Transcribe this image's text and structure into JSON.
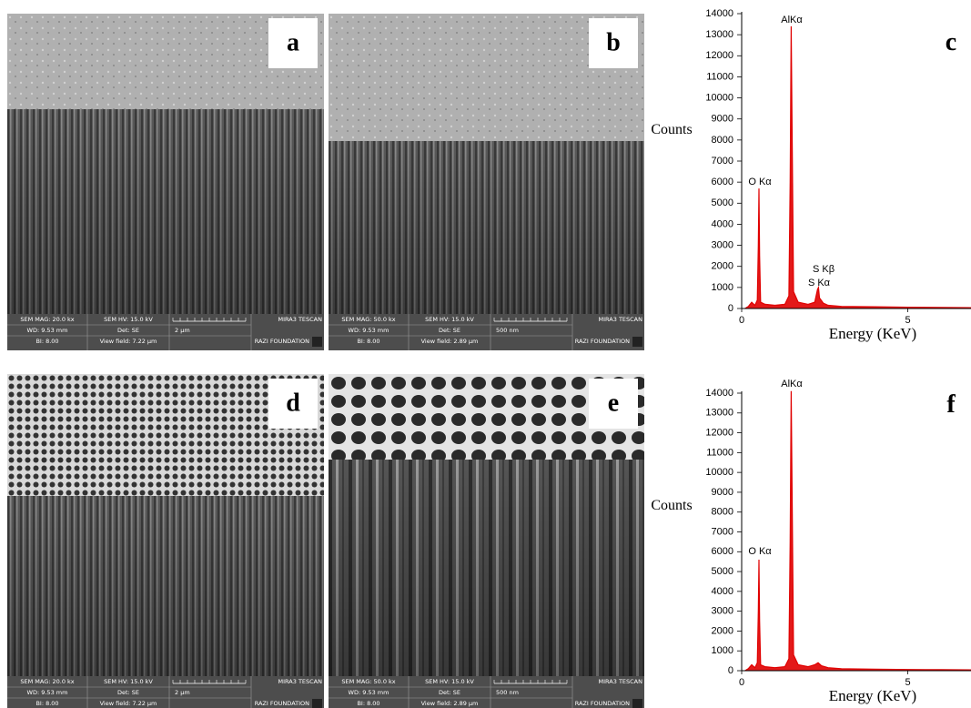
{
  "panels": [
    {
      "label": "a",
      "info": {
        "mag": "SEM MAG: 20.0 kx",
        "hv": "SEM HV: 15.0 kV",
        "brand": "MIRA3 TESCAN",
        "wd": "WD: 9.53 mm",
        "det": "Det: SE",
        "scale": "2 μm",
        "bi": "BI: 8.00",
        "view_field": "View field: 7.22 μm",
        "lab": "RAZI FOUNDATION"
      }
    },
    {
      "label": "b",
      "info": {
        "mag": "SEM MAG: 50.0 kx",
        "hv": "SEM HV: 15.0 kV",
        "brand": "MIRA3 TESCAN",
        "wd": "WD: 9.53 mm",
        "det": "Det: SE",
        "scale": "500 nm",
        "bi": "BI: 8.00",
        "view_field": "View field: 2.89 μm",
        "lab": "RAZI FOUNDATION"
      }
    },
    {
      "label": "d",
      "info": {
        "mag": "SEM MAG: 20.0 kx",
        "hv": "SEM HV: 15.0 kV",
        "brand": "MIRA3 TESCAN",
        "wd": "WD: 9.53 mm",
        "det": "Det: SE",
        "scale": "2 μm",
        "bi": "BI: 8.00",
        "view_field": "View field: 7.22 μm",
        "lab": "RAZI FOUNDATION"
      }
    },
    {
      "label": "e",
      "info": {
        "mag": "SEM MAG: 50.0 kx",
        "hv": "SEM HV: 15.0 kV",
        "brand": "MIRA3 TESCAN",
        "wd": "WD: 9.53 mm",
        "det": "Det: SE",
        "scale": "500 nm",
        "bi": "BI: 8.00",
        "view_field": "View field: 2.89 μm",
        "lab": "RAZI FOUNDATION"
      }
    }
  ],
  "chart_data": [
    {
      "type": "area",
      "label": "c",
      "xlabel": "Energy (KeV)",
      "ylabel": "Counts",
      "color": "#e00000",
      "x": [
        0.1,
        0.2,
        0.3,
        0.4,
        0.47,
        0.5,
        0.52,
        0.54,
        0.57,
        0.7,
        1.0,
        1.3,
        1.42,
        1.46,
        1.49,
        1.52,
        1.56,
        1.7,
        2.0,
        2.2,
        2.28,
        2.31,
        2.34,
        2.46,
        2.6,
        3,
        4,
        5,
        6,
        6.9
      ],
      "values": [
        0,
        100,
        300,
        150,
        400,
        3000,
        5700,
        2500,
        300,
        200,
        150,
        200,
        600,
        6000,
        13400,
        8000,
        800,
        300,
        200,
        300,
        900,
        1000,
        500,
        250,
        150,
        100,
        80,
        60,
        50,
        40
      ],
      "annotations": [
        "AlKα",
        "O Kα",
        "S Kβ",
        "S Kα"
      ],
      "xlim": [
        0,
        6.9
      ],
      "xticks": [
        0,
        5
      ],
      "ylim": [
        0,
        14000
      ],
      "yticks": [
        0,
        1000,
        2000,
        3000,
        4000,
        5000,
        6000,
        7000,
        8000,
        9000,
        10000,
        11000,
        12000,
        13000,
        14000
      ]
    },
    {
      "type": "area",
      "label": "f",
      "xlabel": "Energy (KeV)",
      "ylabel": "Counts",
      "color": "#e00000",
      "x": [
        0.1,
        0.2,
        0.3,
        0.4,
        0.47,
        0.5,
        0.52,
        0.54,
        0.57,
        0.7,
        1.0,
        1.3,
        1.42,
        1.46,
        1.49,
        1.52,
        1.56,
        1.7,
        2.0,
        2.2,
        2.3,
        2.4,
        2.6,
        3,
        4,
        5,
        6,
        6.9
      ],
      "values": [
        0,
        100,
        300,
        150,
        400,
        3000,
        5600,
        2500,
        300,
        200,
        150,
        200,
        600,
        6500,
        14100,
        8500,
        800,
        300,
        200,
        300,
        400,
        250,
        150,
        100,
        80,
        60,
        50,
        40
      ],
      "annotations": [
        "AlKα",
        "O Kα"
      ],
      "xlim": [
        0,
        6.9
      ],
      "xticks": [
        0,
        5
      ],
      "ylim": [
        0,
        14000
      ],
      "yticks": [
        0,
        1000,
        2000,
        3000,
        4000,
        5000,
        6000,
        7000,
        8000,
        9000,
        10000,
        11000,
        12000,
        13000,
        14000
      ]
    }
  ]
}
